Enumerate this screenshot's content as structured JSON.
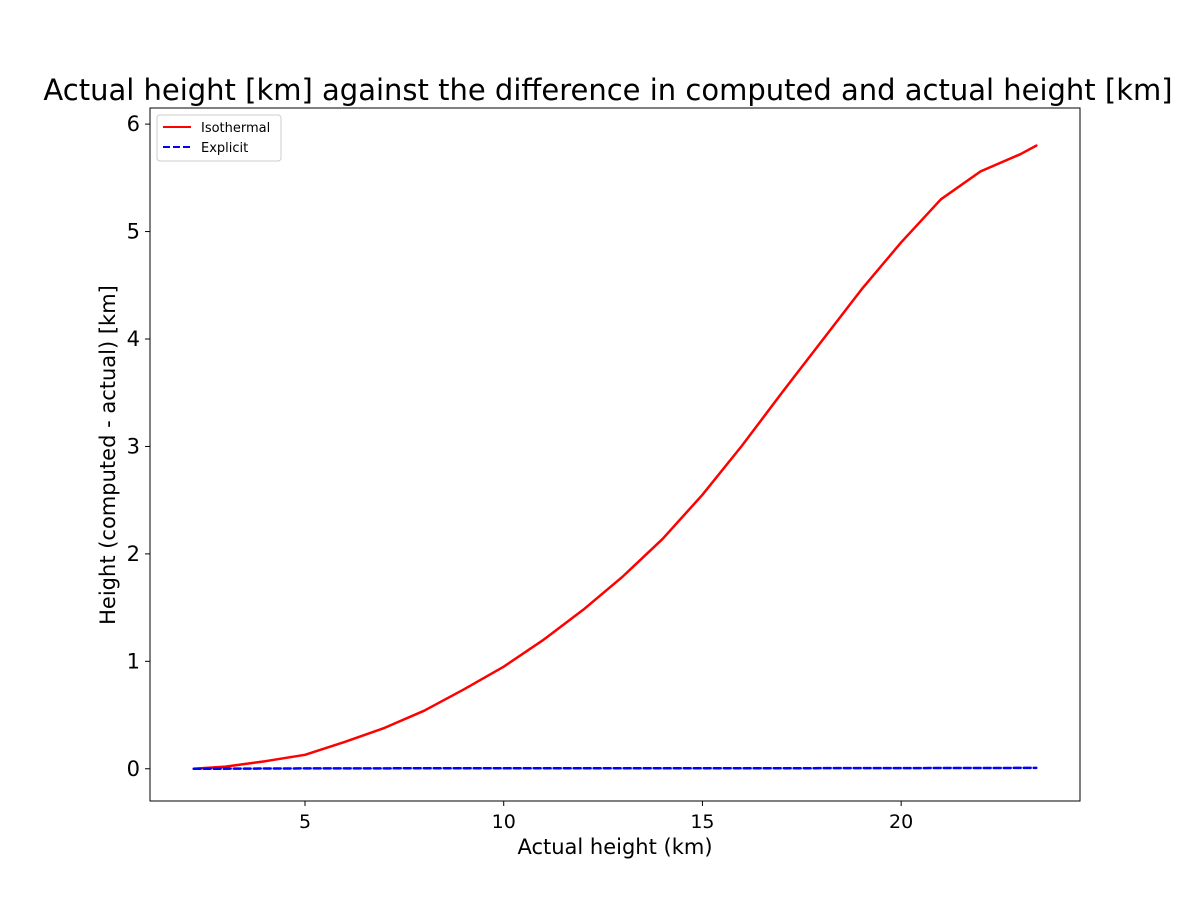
{
  "chart_data": {
    "type": "line",
    "title": "Actual height [km] against the difference in computed and actual height [km]",
    "xlabel": "Actual height (km)",
    "ylabel": "Height (computed - actual) [km]",
    "xlim": [
      1.1,
      24.5
    ],
    "ylim": [
      -0.3,
      6.15
    ],
    "xticks": [
      5,
      10,
      15,
      20
    ],
    "yticks": [
      0,
      1,
      2,
      3,
      4,
      5,
      6
    ],
    "grid": false,
    "legend_position": "top-left",
    "series": [
      {
        "name": "Isothermal",
        "color": "#ff0000",
        "dash": "solid",
        "x": [
          2.2,
          3,
          4,
          5,
          6,
          7,
          8,
          9,
          10,
          11,
          12,
          13,
          14,
          15,
          16,
          17,
          18,
          19,
          20,
          21,
          22,
          23,
          23.4
        ],
        "y": [
          0.0,
          0.02,
          0.07,
          0.13,
          0.25,
          0.38,
          0.54,
          0.74,
          0.95,
          1.2,
          1.48,
          1.79,
          2.14,
          2.55,
          3.01,
          3.5,
          3.98,
          4.46,
          4.9,
          5.3,
          5.56,
          5.72,
          5.8
        ]
      },
      {
        "name": "Explicit",
        "color": "#0000ff",
        "dash": "dashed",
        "x": [
          2.2,
          5,
          10,
          15,
          20,
          23.4
        ],
        "y": [
          0.0,
          0.003,
          0.005,
          0.004,
          0.006,
          0.008
        ]
      }
    ]
  }
}
